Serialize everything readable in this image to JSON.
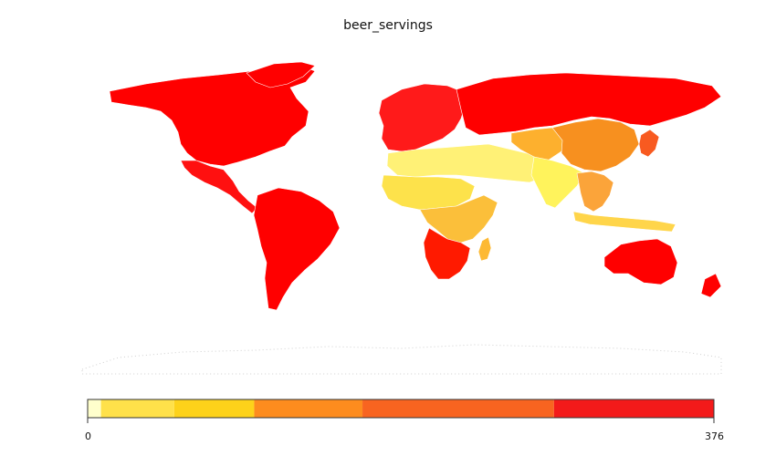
{
  "chart_data": {
    "type": "choropleth",
    "title": "beer_servings",
    "colorscale": {
      "min": 0,
      "max": 376,
      "tick_labels": [
        "0",
        "376"
      ],
      "stops": [
        {
          "value": 0,
          "color": "#ffffcc"
        },
        {
          "value": 8,
          "color": "#ffe14a"
        },
        {
          "value": 52,
          "color": "#fdd21a"
        },
        {
          "value": 100,
          "color": "#fd8c1e"
        },
        {
          "value": 165,
          "color": "#f86420"
        },
        {
          "value": 280,
          "color": "#f31a1a"
        },
        {
          "value": 376,
          "color": "#ff0000"
        }
      ]
    },
    "regions": [
      {
        "name": "North America",
        "level": "high",
        "color": "#ff0000"
      },
      {
        "name": "Mexico & Central America",
        "level": "high",
        "color": "#ff1010"
      },
      {
        "name": "South America",
        "level": "high",
        "color": "#ff0000"
      },
      {
        "name": "Europe",
        "level": "high",
        "color": "#ff1a1a"
      },
      {
        "name": "Russia",
        "level": "high",
        "color": "#ff0000"
      },
      {
        "name": "North Africa & Middle East",
        "level": "low",
        "color": "#fff176"
      },
      {
        "name": "Sahel & West Africa",
        "level": "low",
        "color": "#fde24b"
      },
      {
        "name": "Central & East Africa",
        "level": "medium",
        "color": "#fbbf3a"
      },
      {
        "name": "Southern Africa",
        "level": "high",
        "color": "#ff1a00"
      },
      {
        "name": "Madagascar",
        "level": "medium",
        "color": "#fdb933"
      },
      {
        "name": "Central Asia",
        "level": "medium",
        "color": "#fdb02e"
      },
      {
        "name": "South Asia",
        "level": "low",
        "color": "#fff35c"
      },
      {
        "name": "China & Mongolia",
        "level": "medium",
        "color": "#f7901f"
      },
      {
        "name": "Southeast Asia",
        "level": "medium",
        "color": "#fba43a"
      },
      {
        "name": "Japan & Korea",
        "level": "high",
        "color": "#f85a20"
      },
      {
        "name": "Indonesia",
        "level": "low",
        "color": "#ffd54a"
      },
      {
        "name": "Australia",
        "level": "high",
        "color": "#ff0000"
      },
      {
        "name": "New Zealand",
        "level": "high",
        "color": "#ff0000"
      }
    ]
  }
}
